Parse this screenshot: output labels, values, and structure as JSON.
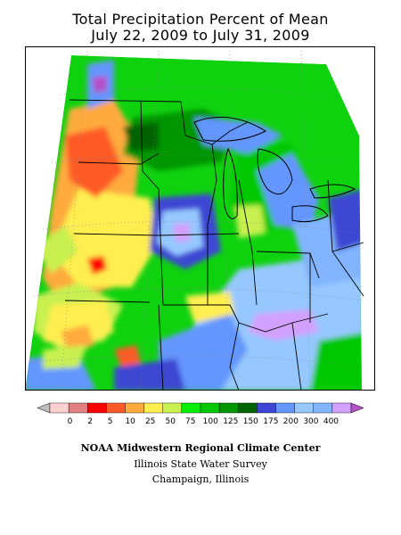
{
  "title": {
    "line1": "Total Precipitation Percent of Mean",
    "line2": "July 22, 2009 to July 31, 2009"
  },
  "legend": {
    "colors": [
      "#bdbdbd",
      "#ffd0d0",
      "#e08080",
      "#ff0000",
      "#ff5a28",
      "#ffaa3c",
      "#ffee50",
      "#c8f050",
      "#00ee00",
      "#00c800",
      "#009600",
      "#006400",
      "#3c46d2",
      "#6496ff",
      "#96c8ff",
      "#82b4ff",
      "#d2a0ff",
      "#b450c8"
    ],
    "labels": [
      "0",
      "2",
      "5",
      "10",
      "25",
      "50",
      "75",
      "100",
      "125",
      "150",
      "175",
      "200",
      "300",
      "400"
    ]
  },
  "credits": {
    "line1": "NOAA Midwestern Regional Climate Center",
    "line2": "Illinois State Water Survey",
    "line3": "Champaign, Illinois"
  }
}
